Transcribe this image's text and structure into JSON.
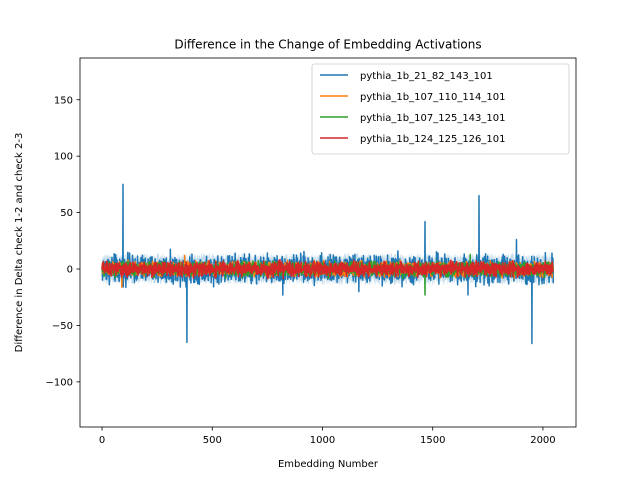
{
  "chart_data": {
    "type": "line",
    "title": "Difference in the Change of Embedding Activations",
    "xlabel": "Embedding Number",
    "ylabel": "Difference in Delta check 1-2 and check 2-3",
    "xlim": [
      -100,
      2150
    ],
    "ylim": [
      -140,
      187
    ],
    "xticks": [
      0,
      500,
      1000,
      1500,
      2000
    ],
    "xtick_labels": [
      "0",
      "500",
      "1000",
      "1500",
      "2000"
    ],
    "yticks": [
      -100,
      -50,
      0,
      50,
      100,
      150
    ],
    "ytick_labels": [
      "−100",
      "−50",
      "0",
      "50",
      "100",
      "150"
    ],
    "grid": false,
    "legend_position": "top-right",
    "n_points": 2048,
    "series": [
      {
        "name": "pythia_1b_21_82_143_101",
        "color": "#1f77b4",
        "noise_amplitude": 6,
        "band_amplitude": 12,
        "spikes": [
          {
            "x": 95,
            "y": 75
          },
          {
            "x": 385,
            "y": -65
          },
          {
            "x": 820,
            "y": -23
          },
          {
            "x": 1165,
            "y": -20
          },
          {
            "x": 1465,
            "y": 42
          },
          {
            "x": 1660,
            "y": -23
          },
          {
            "x": 1710,
            "y": 65
          },
          {
            "x": 1880,
            "y": 26
          },
          {
            "x": 1950,
            "y": -66
          }
        ]
      },
      {
        "name": "pythia_1b_107_110_114_101",
        "color": "#ff7f0e",
        "noise_amplitude": 3,
        "band_amplitude": 0,
        "spikes": [
          {
            "x": 90,
            "y": -16
          },
          {
            "x": 375,
            "y": 12
          }
        ]
      },
      {
        "name": "pythia_1b_107_125_143_101",
        "color": "#2ca02c",
        "noise_amplitude": 3,
        "band_amplitude": 0,
        "spikes": [
          {
            "x": 1465,
            "y": -23
          },
          {
            "x": 1670,
            "y": 13
          }
        ]
      },
      {
        "name": "pythia_1b_124_125_126_101",
        "color": "#d62728",
        "noise_amplitude": 3,
        "band_amplitude": 0,
        "spikes": []
      }
    ]
  }
}
